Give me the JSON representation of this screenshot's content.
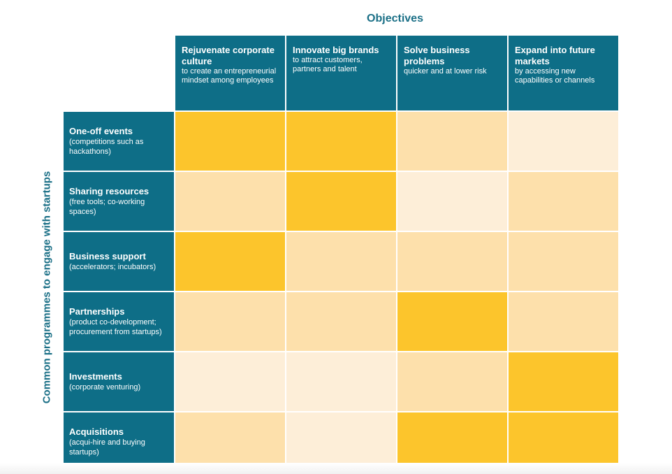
{
  "title": "Objectives",
  "side_title": "Common programmes to engage with startups",
  "colors": {
    "high": "#fcc52c",
    "mid": "#fde0ab",
    "low": "#fdeed8",
    "header": "#0e6e87"
  },
  "objectives": [
    {
      "title": "Rejuvenate corporate culture",
      "subtitle": "to create an entrepreneurial mindset among employees"
    },
    {
      "title": "Innovate big brands",
      "subtitle": "to attract customers, partners and talent"
    },
    {
      "title": "Solve business problems",
      "subtitle": "quicker and at lower risk"
    },
    {
      "title": "Expand into future markets",
      "subtitle": "by accessing new capabilities or channels"
    }
  ],
  "programmes": [
    {
      "title": "One-off events",
      "subtitle": "(competitions such as hackathons)",
      "levels": [
        "high",
        "high",
        "mid",
        "low"
      ]
    },
    {
      "title": "Sharing resources",
      "subtitle": "(free tools; co-working spaces)",
      "levels": [
        "mid",
        "high",
        "low",
        "mid"
      ]
    },
    {
      "title": "Business support",
      "subtitle": "(accelerators; incubators)",
      "levels": [
        "high",
        "mid",
        "mid",
        "mid"
      ]
    },
    {
      "title": "Partnerships",
      "subtitle": "(product co-development; procurement from startups)",
      "levels": [
        "mid",
        "mid",
        "high",
        "mid"
      ]
    },
    {
      "title": "Investments",
      "subtitle": "(corporate venturing)",
      "levels": [
        "low",
        "low",
        "mid",
        "high"
      ]
    },
    {
      "title": "Acquisitions",
      "subtitle": "(acqui-hire and buying startups)",
      "levels": [
        "mid",
        "low",
        "high",
        "high"
      ]
    }
  ]
}
